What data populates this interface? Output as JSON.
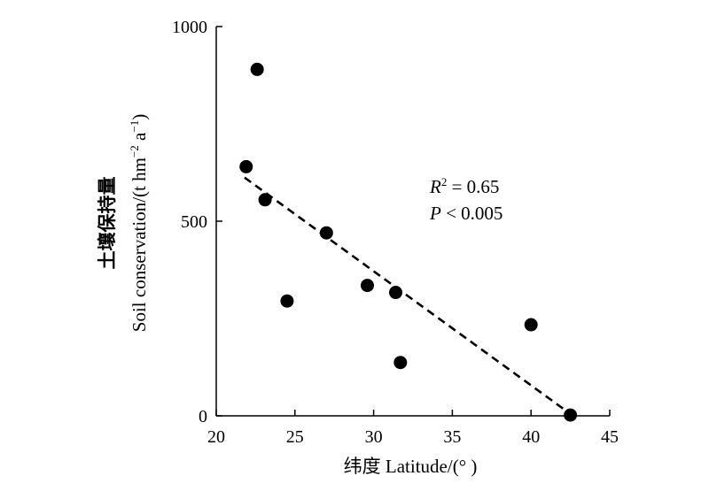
{
  "chart_data": {
    "type": "scatter",
    "xlabel": "纬度 Latitude/(° )",
    "ylabel_cn": "土壤保持量",
    "ylabel_en": "Soil conservation/(t hm",
    "ylabel_sup1": "−2",
    "ylabel_mid": " a",
    "ylabel_sup2": "−1",
    "ylabel_end": ")",
    "xlim": [
      20,
      45
    ],
    "ylim": [
      0,
      1000
    ],
    "x_ticks": [
      20,
      25,
      30,
      35,
      40,
      45
    ],
    "y_ticks": [
      0,
      500,
      1000
    ],
    "x_tick_labels": [
      "20",
      "25",
      "30",
      "35",
      "40",
      "45"
    ],
    "y_tick_labels": [
      "0",
      "500",
      "1000"
    ],
    "points": [
      {
        "x": 22.6,
        "y": 890
      },
      {
        "x": 21.9,
        "y": 640
      },
      {
        "x": 23.1,
        "y": 555
      },
      {
        "x": 24.5,
        "y": 295
      },
      {
        "x": 27.0,
        "y": 470
      },
      {
        "x": 29.6,
        "y": 335
      },
      {
        "x": 31.4,
        "y": 317
      },
      {
        "x": 31.7,
        "y": 137
      },
      {
        "x": 40.0,
        "y": 234
      },
      {
        "x": 42.5,
        "y": 2
      }
    ],
    "trendline": {
      "x": [
        21.8,
        42.5
      ],
      "y": [
        612,
        5
      ],
      "style": "dashed"
    },
    "annotation": {
      "r_letter": "R",
      "r_sup": "2",
      "r_value": " = 0.65",
      "p_letter": "P",
      "p_value": " < 0.005"
    },
    "grid": false,
    "legend": "none",
    "colors": {
      "points": "#000000",
      "trendline": "#000000",
      "axis": "#000000"
    }
  }
}
